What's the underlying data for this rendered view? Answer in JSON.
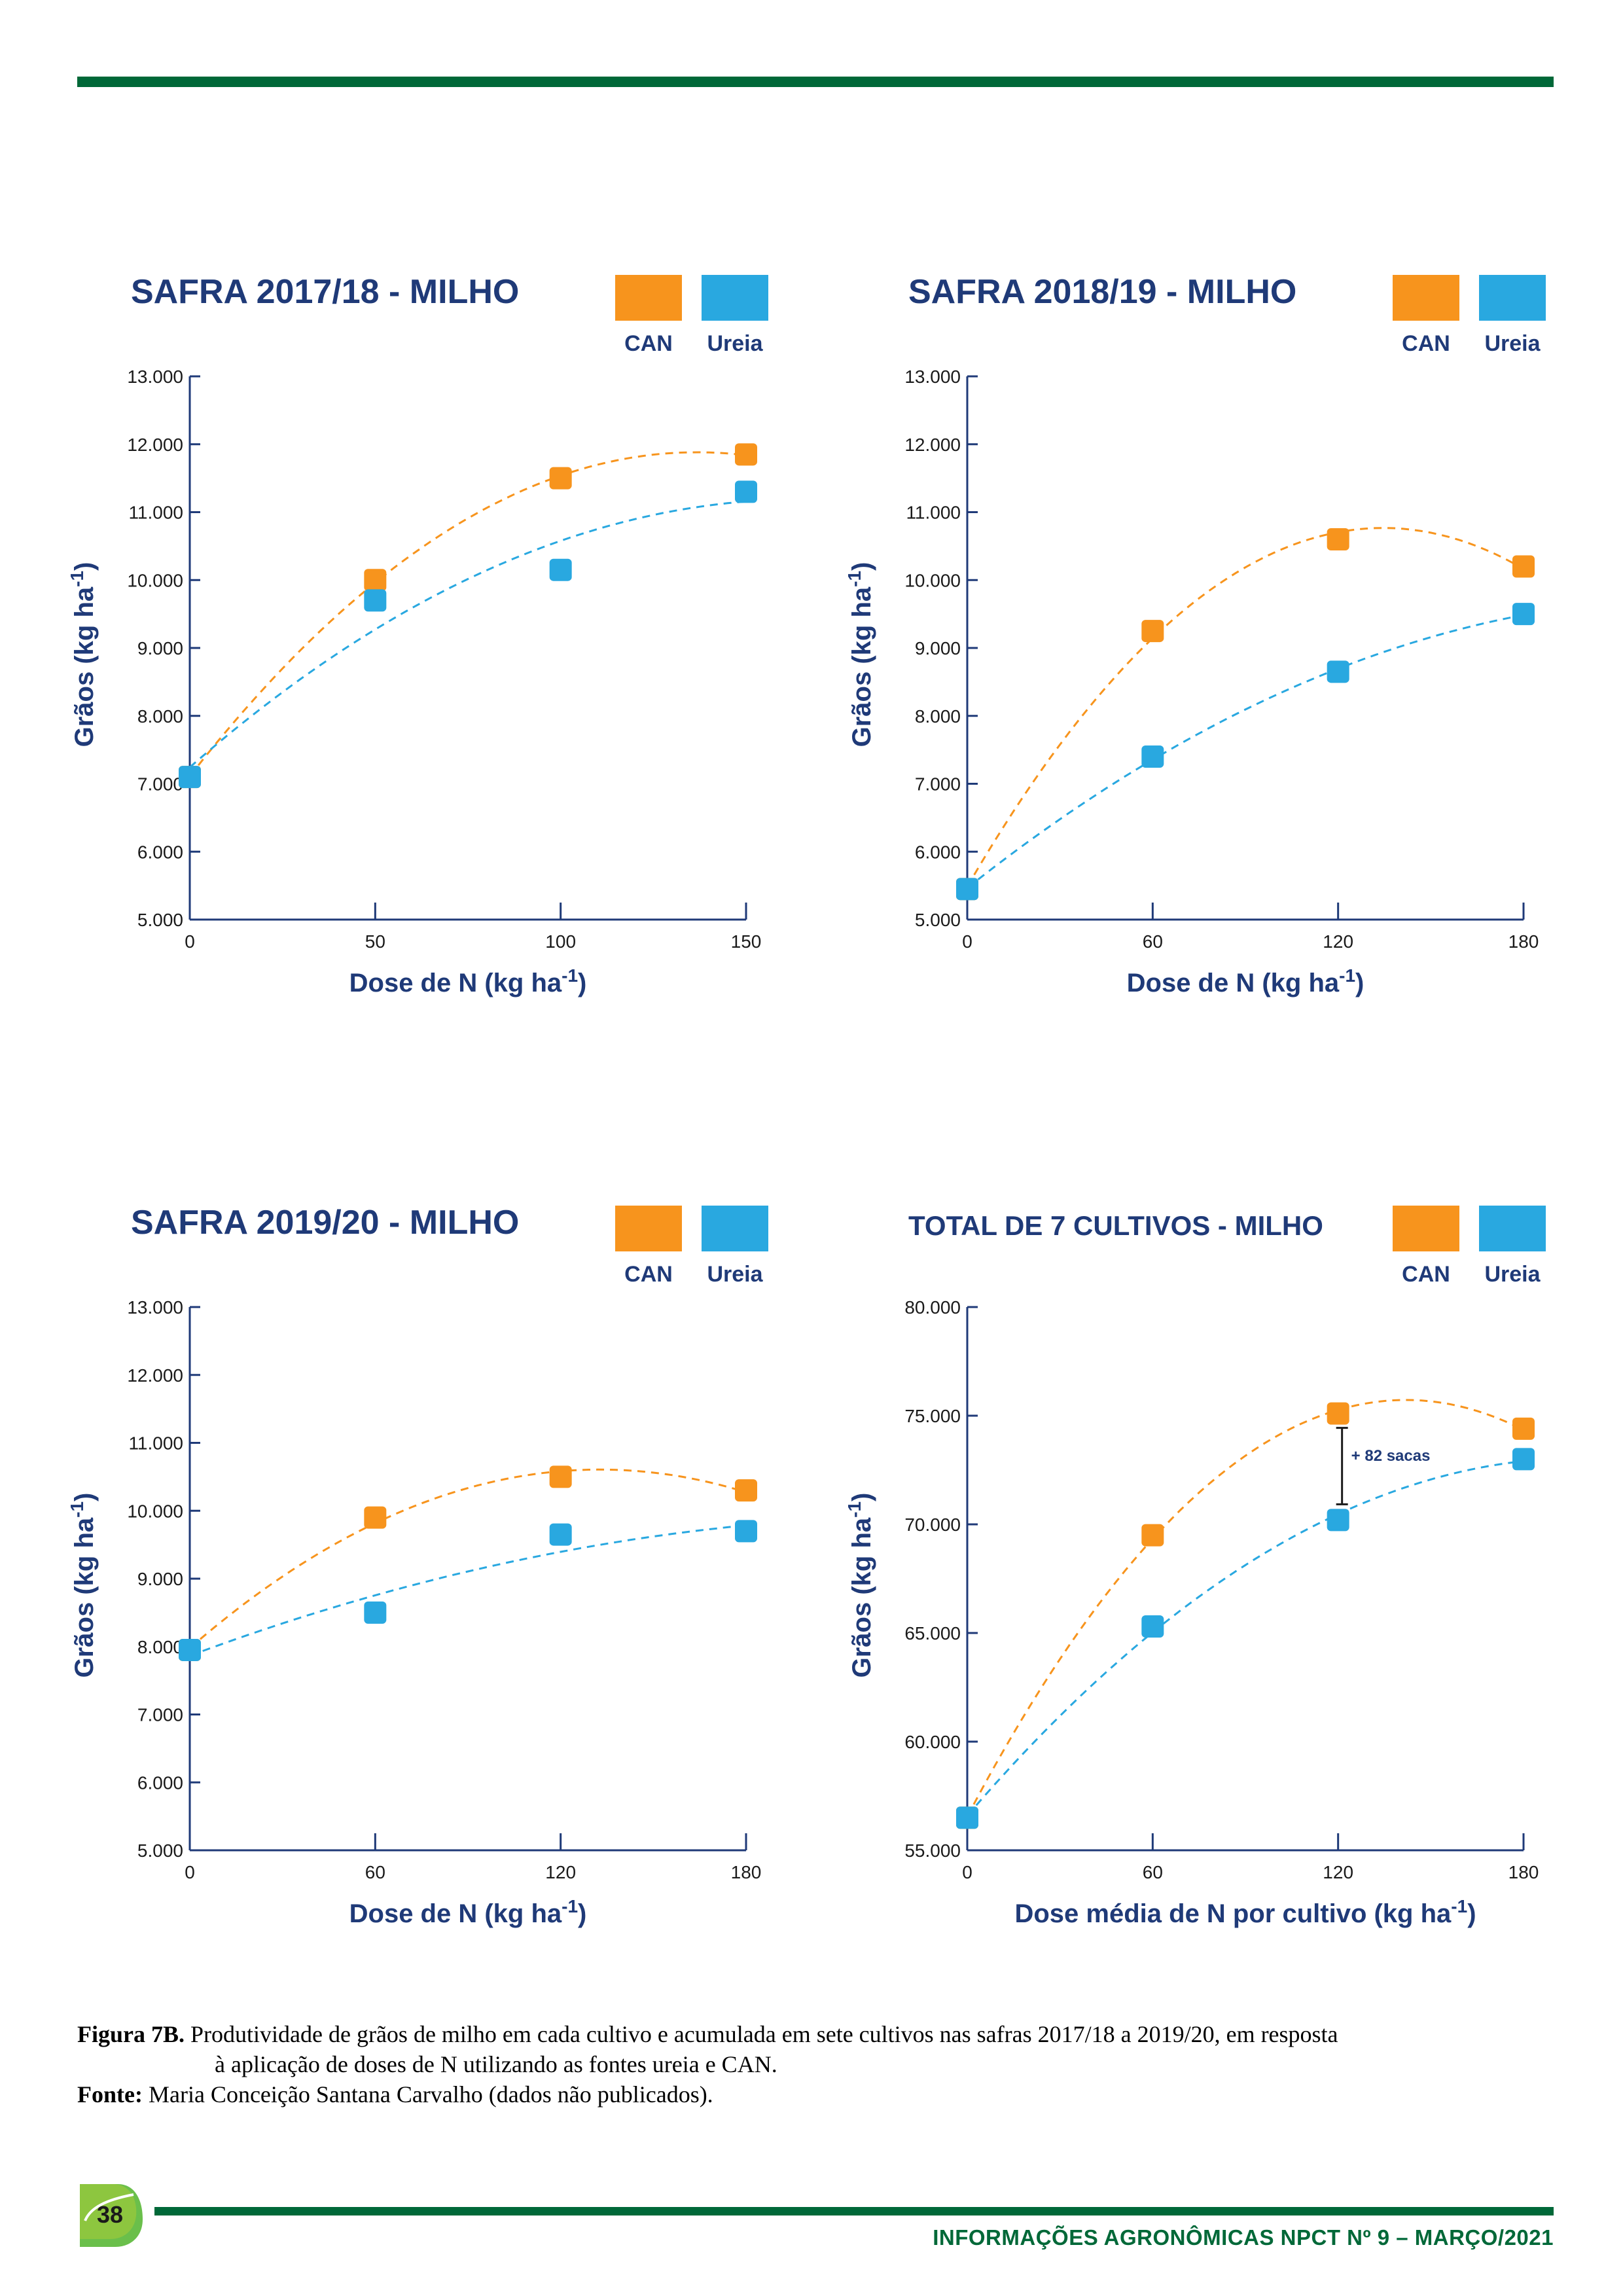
{
  "chart_data": [
    {
      "type": "scatter",
      "title": "SAFRA 2017/18 - MILHO",
      "xlabel": "Dose de N (kg ha-1)",
      "ylabel": "Grãos (kg  ha-1)",
      "x_ticks": [
        "0",
        "50",
        "100",
        "150"
      ],
      "y_ticks": [
        "13.000",
        "12.000",
        "11.000",
        "10.000",
        "9.000",
        "8.000",
        "7.000",
        "6.000",
        "5.000"
      ],
      "xlim": [
        0,
        150
      ],
      "ylim": [
        5000,
        13000
      ],
      "legend": [
        "CAN",
        "Ureia"
      ],
      "legend_position": "top-right",
      "series": [
        {
          "name": "CAN",
          "color": "#f7941d",
          "x": [
            0,
            50,
            100,
            150
          ],
          "y": [
            7100,
            10000,
            11500,
            11850
          ]
        },
        {
          "name": "Ureia",
          "color": "#29a8e0",
          "x": [
            0,
            50,
            100,
            150
          ],
          "y": [
            7100,
            9700,
            10150,
            11300
          ]
        }
      ],
      "trendlines": "dashed quadratic fit per series"
    },
    {
      "type": "scatter",
      "title": "SAFRA 2018/19 - MILHO",
      "xlabel": "Dose de N (kg ha-1)",
      "ylabel": "Grãos (kg  ha-1)",
      "x_ticks": [
        "0",
        "60",
        "120",
        "180"
      ],
      "y_ticks": [
        "13.000",
        "12.000",
        "11.000",
        "10.000",
        "9.000",
        "8.000",
        "7.000",
        "6.000",
        "5.000"
      ],
      "xlim": [
        0,
        180
      ],
      "ylim": [
        5000,
        13000
      ],
      "legend": [
        "CAN",
        "Ureia"
      ],
      "legend_position": "top-right",
      "series": [
        {
          "name": "CAN",
          "color": "#f7941d",
          "x": [
            0,
            60,
            120,
            180
          ],
          "y": [
            5450,
            9250,
            10600,
            10200
          ]
        },
        {
          "name": "Ureia",
          "color": "#29a8e0",
          "x": [
            0,
            60,
            120,
            180
          ],
          "y": [
            5450,
            7400,
            8650,
            9500
          ]
        }
      ],
      "trendlines": "dashed quadratic fit per series"
    },
    {
      "type": "scatter",
      "title": "SAFRA 2019/20 - MILHO",
      "xlabel": "Dose de N (kg ha-1)",
      "ylabel": "Grãos (kg  ha-1)",
      "x_ticks": [
        "0",
        "60",
        "120",
        "180"
      ],
      "y_ticks": [
        "13.000",
        "12.000",
        "11.000",
        "10.000",
        "9.000",
        "8.000",
        "7.000",
        "6.000",
        "5.000"
      ],
      "xlim": [
        0,
        180
      ],
      "ylim": [
        5000,
        13000
      ],
      "legend": [
        "CAN",
        "Ureia"
      ],
      "legend_position": "top-right",
      "series": [
        {
          "name": "CAN",
          "color": "#f7941d",
          "x": [
            0,
            60,
            120,
            180
          ],
          "y": [
            7950,
            9900,
            10500,
            10300
          ]
        },
        {
          "name": "Ureia",
          "color": "#29a8e0",
          "x": [
            0,
            60,
            120,
            180
          ],
          "y": [
            7950,
            8500,
            9650,
            9700
          ]
        }
      ],
      "trendlines": "dashed quadratic fit per series"
    },
    {
      "type": "scatter",
      "title": "TOTAL DE 7 CULTIVOS - MILHO",
      "xlabel": "Dose média de N por cultivo (kg ha-1)",
      "ylabel": "Grãos (kg  ha-1)",
      "x_ticks": [
        "0",
        "60",
        "120",
        "180"
      ],
      "y_ticks": [
        "80.000",
        "75.000",
        "70.000",
        "65.000",
        "60.000",
        "55.000"
      ],
      "xlim": [
        0,
        180
      ],
      "ylim": [
        55000,
        80000
      ],
      "legend": [
        "CAN",
        "Ureia"
      ],
      "legend_position": "top-right",
      "annotation": "+ 82 sacas",
      "series": [
        {
          "name": "CAN",
          "color": "#f7941d",
          "x": [
            0,
            60,
            120,
            180
          ],
          "y": [
            56500,
            69500,
            75100,
            74400
          ]
        },
        {
          "name": "Ureia",
          "color": "#29a8e0",
          "x": [
            0,
            60,
            120,
            180
          ],
          "y": [
            56500,
            65300,
            70200,
            73000
          ]
        }
      ],
      "trendlines": "dashed quadratic fit per series"
    }
  ],
  "caption": {
    "figure_label": "Figura 7B.",
    "figure_text_1": " Produtividade de grãos de milho em cada cultivo e acumulada em sete cultivos nas safras 2017/18 a 2019/20, em resposta",
    "figure_text_2": "à aplicação de doses de N utilizando as fontes ureia e CAN.",
    "source_label": "Fonte:",
    "source_text": " Maria Conceição Santana Carvalho (dados não publicados)."
  },
  "footer": {
    "page_number": "38",
    "publication": "INFORMAÇÕES AGRONÔMICAS NPCT Nº 9 – MARÇO/2021"
  },
  "colors": {
    "brand_green": "#006838",
    "title_blue": "#1f3a78",
    "can_orange": "#f7941d",
    "ureia_blue": "#29a8e0"
  }
}
